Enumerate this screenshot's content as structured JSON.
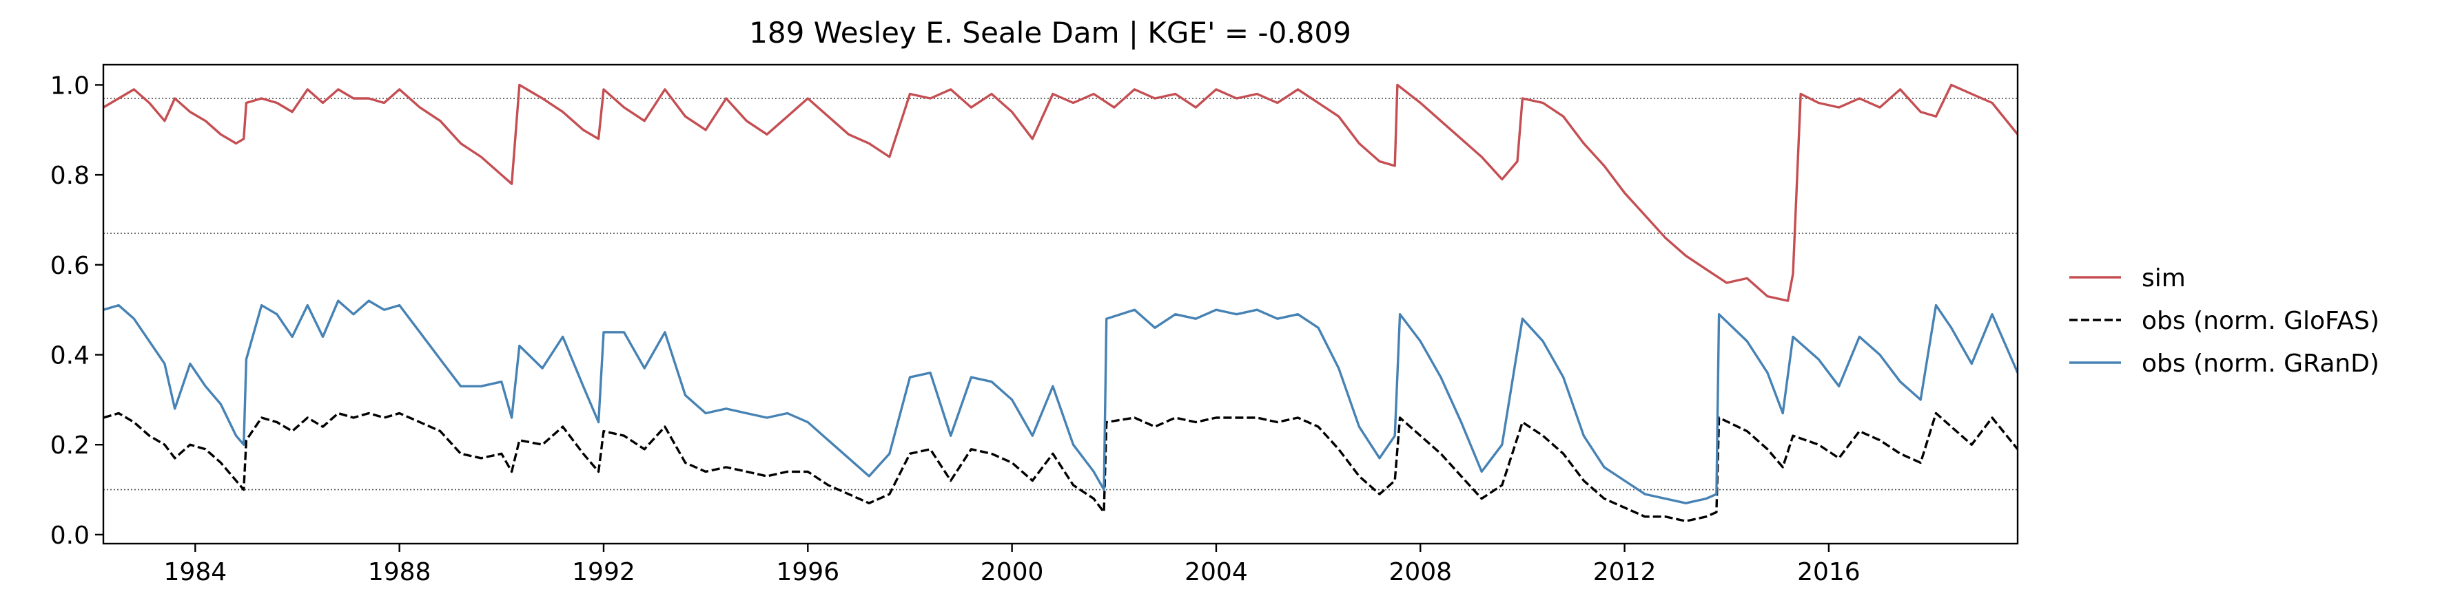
{
  "chart_data": {
    "type": "line",
    "title": "189  Wesley E. Seale Dam | KGE' = -0.809",
    "xlabel": "",
    "ylabel": "",
    "xlim": [
      1982.2,
      2019.7
    ],
    "ylim": [
      -0.02,
      1.045
    ],
    "x_ticks": [
      1984,
      1988,
      1992,
      1996,
      2000,
      2004,
      2008,
      2012,
      2016
    ],
    "y_ticks": [
      0.0,
      0.2,
      0.4,
      0.6,
      0.8,
      1.0
    ],
    "y_tick_labels": [
      "0.0",
      "0.2",
      "0.4",
      "0.6",
      "0.8",
      "1.0"
    ],
    "reference_lines": [
      0.97,
      0.67,
      0.1
    ],
    "grid": false,
    "legend_position": "right, outside plot",
    "series": [
      {
        "name": "sim",
        "color": "#c44e52",
        "dash": "solid",
        "x": [
          1982.2,
          1982.5,
          1982.8,
          1983.1,
          1983.4,
          1983.6,
          1983.9,
          1984.2,
          1984.5,
          1984.8,
          1984.95,
          1985.0,
          1985.3,
          1985.6,
          1985.9,
          1986.2,
          1986.5,
          1986.8,
          1987.1,
          1987.4,
          1987.7,
          1988.0,
          1988.4,
          1988.8,
          1989.2,
          1989.6,
          1990.0,
          1990.2,
          1990.35,
          1990.8,
          1991.2,
          1991.6,
          1991.9,
          1992.0,
          1992.4,
          1992.8,
          1993.2,
          1993.6,
          1994.0,
          1994.4,
          1994.8,
          1995.2,
          1995.6,
          1996.0,
          1996.4,
          1996.8,
          1997.2,
          1997.6,
          1998.0,
          1998.4,
          1998.8,
          1999.2,
          1999.6,
          2000.0,
          2000.4,
          2000.8,
          2001.2,
          2001.6,
          2002.0,
          2002.4,
          2002.8,
          2003.2,
          2003.6,
          2004.0,
          2004.4,
          2004.8,
          2005.2,
          2005.6,
          2006.0,
          2006.4,
          2006.8,
          2007.2,
          2007.5,
          2007.55,
          2008.0,
          2008.4,
          2008.8,
          2009.2,
          2009.6,
          2009.9,
          2010.0,
          2010.4,
          2010.8,
          2011.2,
          2011.6,
          2012.0,
          2012.4,
          2012.8,
          2013.2,
          2013.6,
          2014.0,
          2014.4,
          2014.8,
          2015.2,
          2015.3,
          2015.45,
          2015.8,
          2016.2,
          2016.6,
          2017.0,
          2017.4,
          2017.8,
          2018.1,
          2018.4,
          2018.8,
          2019.2,
          2019.7
        ],
        "y": [
          0.95,
          0.97,
          0.99,
          0.96,
          0.92,
          0.97,
          0.94,
          0.92,
          0.89,
          0.87,
          0.88,
          0.96,
          0.97,
          0.96,
          0.94,
          0.99,
          0.96,
          0.99,
          0.97,
          0.97,
          0.96,
          0.99,
          0.95,
          0.92,
          0.87,
          0.84,
          0.8,
          0.78,
          1.0,
          0.97,
          0.94,
          0.9,
          0.88,
          0.99,
          0.95,
          0.92,
          0.99,
          0.93,
          0.9,
          0.97,
          0.92,
          0.89,
          0.93,
          0.97,
          0.93,
          0.89,
          0.87,
          0.84,
          0.98,
          0.97,
          0.99,
          0.95,
          0.98,
          0.94,
          0.88,
          0.98,
          0.96,
          0.98,
          0.95,
          0.99,
          0.97,
          0.98,
          0.95,
          0.99,
          0.97,
          0.98,
          0.96,
          0.99,
          0.96,
          0.93,
          0.87,
          0.83,
          0.82,
          1.0,
          0.96,
          0.92,
          0.88,
          0.84,
          0.79,
          0.83,
          0.97,
          0.96,
          0.93,
          0.87,
          0.82,
          0.76,
          0.71,
          0.66,
          0.62,
          0.59,
          0.56,
          0.57,
          0.53,
          0.52,
          0.58,
          0.98,
          0.96,
          0.95,
          0.97,
          0.95,
          0.99,
          0.94,
          0.93,
          1.0,
          0.98,
          0.96,
          0.89
        ]
      },
      {
        "name": "obs (norm. GloFAS)",
        "color": "#000000",
        "dash": "dashed",
        "x": [
          1982.2,
          1982.5,
          1982.8,
          1983.1,
          1983.4,
          1983.6,
          1983.9,
          1984.2,
          1984.5,
          1984.8,
          1984.95,
          1985.0,
          1985.3,
          1985.6,
          1985.9,
          1986.2,
          1986.5,
          1986.8,
          1987.1,
          1987.4,
          1987.7,
          1988.0,
          1988.4,
          1988.8,
          1989.2,
          1989.6,
          1990.0,
          1990.2,
          1990.35,
          1990.8,
          1991.2,
          1991.6,
          1991.9,
          1992.0,
          1992.4,
          1992.8,
          1993.2,
          1993.6,
          1994.0,
          1994.4,
          1994.8,
          1995.2,
          1995.6,
          1996.0,
          1996.4,
          1996.8,
          1997.2,
          1997.6,
          1998.0,
          1998.4,
          1998.8,
          1999.2,
          1999.6,
          2000.0,
          2000.4,
          2000.8,
          2001.2,
          2001.6,
          2001.8,
          2001.85,
          2002.4,
          2002.8,
          2003.2,
          2003.6,
          2004.0,
          2004.4,
          2004.8,
          2005.2,
          2005.6,
          2006.0,
          2006.4,
          2006.8,
          2007.2,
          2007.5,
          2007.6,
          2008.0,
          2008.4,
          2008.8,
          2009.2,
          2009.6,
          2010.0,
          2010.4,
          2010.8,
          2011.2,
          2011.6,
          2012.0,
          2012.4,
          2012.8,
          2013.2,
          2013.6,
          2013.8,
          2013.85,
          2014.4,
          2014.8,
          2015.1,
          2015.3,
          2015.8,
          2016.2,
          2016.6,
          2017.0,
          2017.4,
          2017.8,
          2018.1,
          2018.4,
          2018.8,
          2019.2,
          2019.7
        ],
        "y": [
          0.26,
          0.27,
          0.25,
          0.22,
          0.2,
          0.17,
          0.2,
          0.19,
          0.16,
          0.12,
          0.1,
          0.21,
          0.26,
          0.25,
          0.23,
          0.26,
          0.24,
          0.27,
          0.26,
          0.27,
          0.26,
          0.27,
          0.25,
          0.23,
          0.18,
          0.17,
          0.18,
          0.14,
          0.21,
          0.2,
          0.24,
          0.18,
          0.14,
          0.23,
          0.22,
          0.19,
          0.24,
          0.16,
          0.14,
          0.15,
          0.14,
          0.13,
          0.14,
          0.14,
          0.11,
          0.09,
          0.07,
          0.09,
          0.18,
          0.19,
          0.12,
          0.19,
          0.18,
          0.16,
          0.12,
          0.18,
          0.11,
          0.08,
          0.05,
          0.25,
          0.26,
          0.24,
          0.26,
          0.25,
          0.26,
          0.26,
          0.26,
          0.25,
          0.26,
          0.24,
          0.19,
          0.13,
          0.09,
          0.12,
          0.26,
          0.22,
          0.18,
          0.13,
          0.08,
          0.11,
          0.25,
          0.22,
          0.18,
          0.12,
          0.08,
          0.06,
          0.04,
          0.04,
          0.03,
          0.04,
          0.05,
          0.26,
          0.23,
          0.19,
          0.15,
          0.22,
          0.2,
          0.17,
          0.23,
          0.21,
          0.18,
          0.16,
          0.27,
          0.24,
          0.2,
          0.26,
          0.19
        ]
      },
      {
        "name": "obs (norm. GRanD)",
        "color": "#4682b4",
        "dash": "solid",
        "x": [
          1982.2,
          1982.5,
          1982.8,
          1983.1,
          1983.4,
          1983.6,
          1983.9,
          1984.2,
          1984.5,
          1984.8,
          1984.95,
          1985.0,
          1985.3,
          1985.6,
          1985.9,
          1986.2,
          1986.5,
          1986.8,
          1987.1,
          1987.4,
          1987.7,
          1988.0,
          1988.4,
          1988.8,
          1989.2,
          1989.6,
          1990.0,
          1990.2,
          1990.35,
          1990.8,
          1991.2,
          1991.6,
          1991.9,
          1992.0,
          1992.4,
          1992.8,
          1993.2,
          1993.6,
          1994.0,
          1994.4,
          1994.8,
          1995.2,
          1995.6,
          1996.0,
          1996.4,
          1996.8,
          1997.2,
          1997.6,
          1998.0,
          1998.4,
          1998.8,
          1999.2,
          1999.6,
          2000.0,
          2000.4,
          2000.8,
          2001.2,
          2001.6,
          2001.8,
          2001.85,
          2002.4,
          2002.8,
          2003.2,
          2003.6,
          2004.0,
          2004.4,
          2004.8,
          2005.2,
          2005.6,
          2006.0,
          2006.4,
          2006.8,
          2007.2,
          2007.5,
          2007.6,
          2008.0,
          2008.4,
          2008.8,
          2009.2,
          2009.6,
          2010.0,
          2010.4,
          2010.8,
          2011.2,
          2011.6,
          2012.0,
          2012.4,
          2012.8,
          2013.2,
          2013.6,
          2013.8,
          2013.85,
          2014.4,
          2014.8,
          2015.1,
          2015.3,
          2015.8,
          2016.2,
          2016.6,
          2017.0,
          2017.4,
          2017.8,
          2018.1,
          2018.4,
          2018.8,
          2019.2,
          2019.7
        ],
        "y": [
          0.5,
          0.51,
          0.48,
          0.43,
          0.38,
          0.28,
          0.38,
          0.33,
          0.29,
          0.22,
          0.2,
          0.39,
          0.51,
          0.49,
          0.44,
          0.51,
          0.44,
          0.52,
          0.49,
          0.52,
          0.5,
          0.51,
          0.45,
          0.39,
          0.33,
          0.33,
          0.34,
          0.26,
          0.42,
          0.37,
          0.44,
          0.33,
          0.25,
          0.45,
          0.45,
          0.37,
          0.45,
          0.31,
          0.27,
          0.28,
          0.27,
          0.26,
          0.27,
          0.25,
          0.21,
          0.17,
          0.13,
          0.18,
          0.35,
          0.36,
          0.22,
          0.35,
          0.34,
          0.3,
          0.22,
          0.33,
          0.2,
          0.14,
          0.1,
          0.48,
          0.5,
          0.46,
          0.49,
          0.48,
          0.5,
          0.49,
          0.5,
          0.48,
          0.49,
          0.46,
          0.37,
          0.24,
          0.17,
          0.22,
          0.49,
          0.43,
          0.35,
          0.25,
          0.14,
          0.2,
          0.48,
          0.43,
          0.35,
          0.22,
          0.15,
          0.12,
          0.09,
          0.08,
          0.07,
          0.08,
          0.09,
          0.49,
          0.43,
          0.36,
          0.27,
          0.44,
          0.39,
          0.33,
          0.44,
          0.4,
          0.34,
          0.3,
          0.51,
          0.46,
          0.38,
          0.49,
          0.36
        ]
      }
    ]
  }
}
